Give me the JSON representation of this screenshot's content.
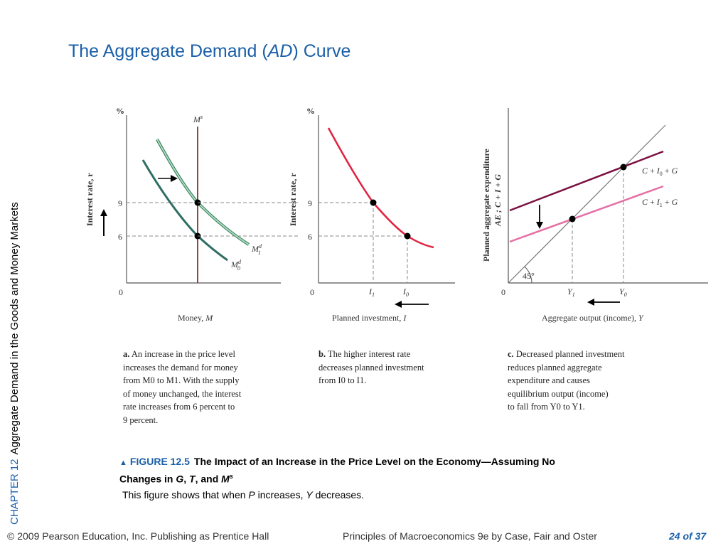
{
  "title": {
    "prefix": "The Aggregate Demand (",
    "italic": "AD",
    "suffix": ") Curve"
  },
  "side": {
    "chapter": "CHAPTER 12",
    "chapter_title": "Aggregate Demand in the Goods and Money Markets"
  },
  "panels": {
    "a": {
      "y_axis_unit": "%",
      "y_axis_label": "Interest rate, r",
      "x_axis_label": "Money, M",
      "origin": "0",
      "ticks": [
        "9",
        "6"
      ],
      "supply_label": "Ms",
      "curve_labels": [
        "M1d",
        "M0d"
      ],
      "caption_lead": "a.",
      "caption": "An increase in the price level increases the demand for money from M0 to M1. With the supply of money unchanged, the interest rate increases from 6 percent to 9 percent.",
      "caption_lines": [
        "An increase in the price level",
        "increases the demand for money",
        "from M0 to M1. With the supply",
        "of money unchanged, the interest",
        "rate increases from 6 percent to",
        "9 percent."
      ]
    },
    "b": {
      "y_axis_unit": "%",
      "y_axis_label": "Interest rate, r",
      "x_axis_label": "Planned investment, I",
      "origin": "0",
      "ticks": [
        "9",
        "6"
      ],
      "x_ticks": [
        "I1",
        "I0"
      ],
      "caption_lead": "b.",
      "caption": "The higher interest rate decreases planned investment from I0 to I1.",
      "caption_lines": [
        "The higher interest rate",
        "decreases planned investment",
        "from I0 to I1."
      ]
    },
    "c": {
      "y_axis_label_1": "Planned aggregate expenditure",
      "y_axis_label_2": "AE ; C + I + G",
      "x_axis_label": "Aggregate output (income), Y",
      "origin": "0",
      "angle": "45°",
      "x_ticks": [
        "Y1",
        "Y0"
      ],
      "line_labels": [
        "C + I0 + G",
        "C + I1 + G"
      ],
      "caption_lead": "c.",
      "caption": "Decreased planned investment reduces planned aggregate expenditure and causes equilibrium output (income) to fall from Y0 to Y1.",
      "caption_lines": [
        "Decreased planned investment",
        "reduces planned aggregate",
        "expenditure and causes",
        "equilibrium output (income)",
        "to fall from Y0 to Y1."
      ]
    }
  },
  "figure": {
    "number": "FIGURE 12.5",
    "title_line1": "The Impact of an Increase in the Price Level on the Economy—Assuming No",
    "title_line2_prefix": "Changes in ",
    "vars": [
      "G",
      "T",
      "M"
    ],
    "description_prefix": "This figure shows that when ",
    "description_p": "P",
    "description_mid": " increases, ",
    "description_y": "Y",
    "description_suffix": " decreases."
  },
  "footer": {
    "copyright": "© 2009 Pearson Education, Inc. Publishing as Prentice Hall",
    "book": "Principles of Macroeconomics 9e by Case, Fair and Oster",
    "page": "24 of 37"
  },
  "colors": {
    "title": "#1a5fa8",
    "money_supply": "#8b4a3a",
    "money_demand_m0": "#2f6e64",
    "money_demand_m1": "#7bc98a",
    "investment_curve": "#e0223f",
    "ae_i0": "#7a1040",
    "ae_i1": "#e46fa6",
    "guide": "#888888"
  }
}
